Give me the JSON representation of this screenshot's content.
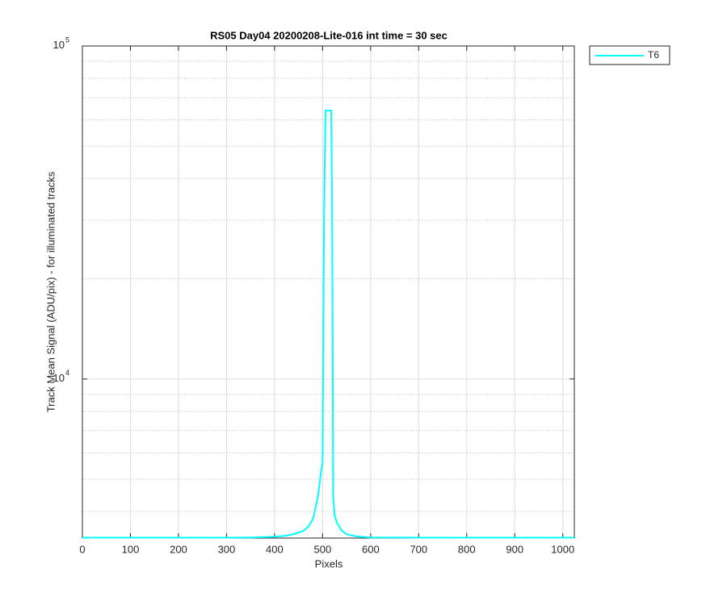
{
  "chart_data": {
    "type": "line",
    "title": "RS05 Day04 20200208-Lite-016 int time = 30 sec",
    "xlabel": "Pixels",
    "ylabel": "Track Mean Signal (ADU/pix) - for illuminated tracks",
    "x": [
      0,
      100,
      200,
      300,
      350,
      400,
      420,
      440,
      460,
      470,
      480,
      490,
      497,
      500,
      503,
      506,
      515,
      518,
      520,
      522,
      525,
      530,
      540,
      550,
      570,
      600,
      700,
      800,
      900,
      1024
    ],
    "series": [
      {
        "name": "T6",
        "color": "#00ffff",
        "values": [
          3340,
          3340,
          3340,
          3340,
          3345,
          3360,
          3380,
          3420,
          3500,
          3600,
          3800,
          4400,
          5300,
          5600,
          30000,
          64000,
          64000,
          64000,
          30000,
          4400,
          3900,
          3700,
          3500,
          3420,
          3370,
          3345,
          3340,
          3340,
          3340,
          3340
        ]
      }
    ],
    "xlim": [
      0,
      1024
    ],
    "xticks": [
      0,
      100,
      200,
      300,
      400,
      500,
      600,
      700,
      800,
      900,
      1000
    ],
    "ylim": [
      3330,
      100000
    ],
    "yscale": "log",
    "yticks": [
      {
        "value": 10000,
        "label": "10",
        "exponent": "4"
      },
      {
        "value": 100000,
        "label": "10",
        "exponent": "5"
      }
    ],
    "minor_yticks": [
      4000,
      5000,
      6000,
      7000,
      8000,
      9000,
      20000,
      30000,
      40000,
      50000,
      60000,
      70000,
      80000,
      90000
    ],
    "grid": true,
    "legend": "outside-top-right"
  }
}
